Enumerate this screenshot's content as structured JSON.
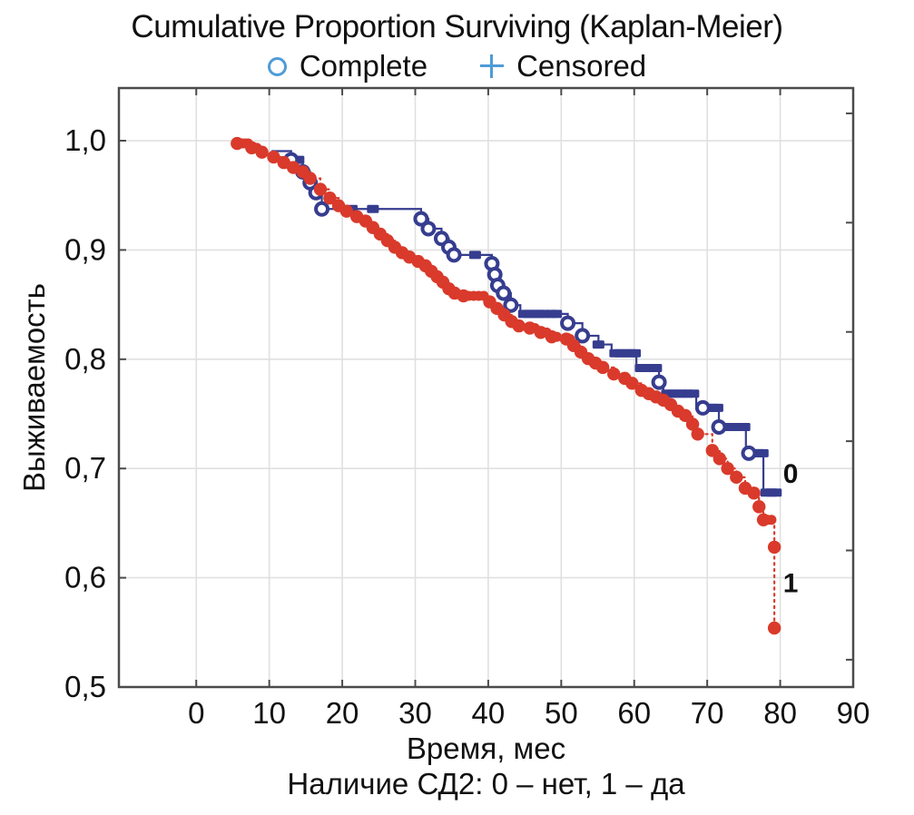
{
  "header": {
    "title": "Cumulative Proportion Surviving (Kaplan-Meier)"
  },
  "chart_data": {
    "type": "line",
    "subtype": "kaplan-meier-step",
    "title": "Cumulative Proportion Surviving (Kaplan-Meier)",
    "xlabel": "Время, мес",
    "ylabel": "Выживаемость",
    "footnote": "Наличие СД2: 0 – нет, 1 – да",
    "grid": true,
    "legend_position": "top",
    "legend": [
      {
        "marker": "open-circle-icon",
        "label": "Complete",
        "color": "#4e9cd8"
      },
      {
        "marker": "plus-icon",
        "label": "Censored",
        "color": "#4e9cd8"
      }
    ],
    "xlim": [
      -10.6,
      90
    ],
    "ylim": [
      0.5,
      1.0482
    ],
    "x_ticks": [
      0,
      10,
      20,
      30,
      40,
      50,
      60,
      70,
      80,
      90
    ],
    "y_ticks": [
      {
        "v": 1.0,
        "label": "1,0"
      },
      {
        "v": 0.9,
        "label": "0,9"
      },
      {
        "v": 0.8,
        "label": "0,8"
      },
      {
        "v": 0.7,
        "label": "0,7"
      },
      {
        "v": 0.6,
        "label": "0,6"
      },
      {
        "v": 0.5,
        "label": "0,5"
      }
    ],
    "y_right_ticks": [
      0.525,
      0.625,
      0.725,
      0.825,
      0.925,
      1.025
    ],
    "colors": {
      "grid": "#e0e0e0",
      "frame": "#4b4b4b",
      "text": "#111111"
    },
    "series": [
      {
        "name": "0",
        "color": "#363d8f",
        "line_style": "solid",
        "complete_marker": "open-circle",
        "censored_marker": "square",
        "end_label": {
          "text": "0",
          "x": 80.4,
          "y": 0.695
        },
        "steps": [
          [
            10.3,
            0.9905
          ],
          [
            13.0,
            0.9825
          ],
          [
            14.6,
            0.9715
          ],
          [
            15.6,
            0.9615
          ],
          [
            16.4,
            0.9525
          ],
          [
            17.2,
            0.9375
          ],
          [
            30.8,
            0.9285
          ],
          [
            31.8,
            0.9195
          ],
          [
            33.6,
            0.9105
          ],
          [
            34.6,
            0.9025
          ],
          [
            35.3,
            0.8955
          ],
          [
            40.5,
            0.8875
          ],
          [
            40.9,
            0.8775
          ],
          [
            41.3,
            0.8675
          ],
          [
            42.1,
            0.8605
          ],
          [
            43.1,
            0.8495
          ],
          [
            44.4,
            0.8415
          ],
          [
            50.9,
            0.833
          ],
          [
            52.9,
            0.8215
          ],
          [
            55.1,
            0.8135
          ],
          [
            56.9,
            0.8055
          ],
          [
            60.3,
            0.792
          ],
          [
            63.4,
            0.779
          ],
          [
            64.0,
            0.7685
          ],
          [
            68.5,
            0.7555
          ],
          [
            71.6,
            0.738
          ],
          [
            75.3,
            0.714
          ],
          [
            77.7,
            0.678
          ],
          [
            79.6,
            0.678
          ]
        ],
        "complete_markers": [
          [
            13.0,
            0.9825
          ],
          [
            14.6,
            0.9715
          ],
          [
            15.6,
            0.9615
          ],
          [
            16.4,
            0.9525
          ],
          [
            17.2,
            0.9375
          ],
          [
            30.8,
            0.9285
          ],
          [
            31.8,
            0.9195
          ],
          [
            33.6,
            0.9105
          ],
          [
            34.6,
            0.9025
          ],
          [
            35.3,
            0.8955
          ],
          [
            40.5,
            0.8875
          ],
          [
            40.9,
            0.8775
          ],
          [
            41.3,
            0.8675
          ],
          [
            42.1,
            0.8605
          ],
          [
            43.1,
            0.8495
          ],
          [
            50.9,
            0.833
          ],
          [
            52.9,
            0.8215
          ],
          [
            63.4,
            0.779
          ],
          [
            69.4,
            0.7555
          ],
          [
            71.6,
            0.738
          ],
          [
            75.7,
            0.714
          ]
        ],
        "censored_markers": [
          [
            14.0,
            0.9825
          ],
          [
            21.3,
            0.9375
          ],
          [
            24.2,
            0.9375
          ],
          [
            38.2,
            0.8955
          ],
          [
            44.9,
            0.8415
          ],
          [
            45.6,
            0.8415
          ],
          [
            46.3,
            0.8415
          ],
          [
            47.0,
            0.8415
          ],
          [
            47.7,
            0.8415
          ],
          [
            48.6,
            0.8415
          ],
          [
            49.3,
            0.8415
          ],
          [
            55.1,
            0.8135
          ],
          [
            57.4,
            0.8055
          ],
          [
            58.1,
            0.8055
          ],
          [
            58.8,
            0.8055
          ],
          [
            59.5,
            0.8055
          ],
          [
            60.1,
            0.8055
          ],
          [
            60.9,
            0.792
          ],
          [
            61.6,
            0.792
          ],
          [
            62.3,
            0.792
          ],
          [
            63.0,
            0.792
          ],
          [
            64.5,
            0.7685
          ],
          [
            65.2,
            0.7685
          ],
          [
            65.9,
            0.7685
          ],
          [
            66.6,
            0.7685
          ],
          [
            67.3,
            0.7685
          ],
          [
            68.1,
            0.7685
          ],
          [
            70.1,
            0.7555
          ],
          [
            70.8,
            0.7555
          ],
          [
            71.4,
            0.7555
          ],
          [
            72.4,
            0.738
          ],
          [
            73.1,
            0.738
          ],
          [
            73.8,
            0.738
          ],
          [
            74.5,
            0.738
          ],
          [
            75.1,
            0.738
          ],
          [
            76.3,
            0.714
          ],
          [
            77.0,
            0.714
          ],
          [
            77.6,
            0.714
          ],
          [
            78.1,
            0.678
          ],
          [
            78.8,
            0.678
          ],
          [
            79.4,
            0.678
          ]
        ]
      },
      {
        "name": "1",
        "color": "#d93a2b",
        "line_style": "dotted",
        "complete_marker": "filled-circle",
        "censored_marker": "dot",
        "end_label": {
          "text": "1",
          "x": 80.4,
          "y": 0.595
        },
        "steps": [
          [
            5.6,
            0.9975
          ],
          [
            7.6,
            0.9935
          ],
          [
            9.0,
            0.9895
          ],
          [
            10.6,
            0.985
          ],
          [
            12.0,
            0.98
          ],
          [
            13.3,
            0.9755
          ],
          [
            14.6,
            0.9715
          ],
          [
            15.6,
            0.9655
          ],
          [
            17.0,
            0.9555
          ],
          [
            18.3,
            0.9475
          ],
          [
            19.5,
            0.9405
          ],
          [
            20.6,
            0.9355
          ],
          [
            22.0,
            0.9305
          ],
          [
            23.2,
            0.9265
          ],
          [
            24.2,
            0.9205
          ],
          [
            25.2,
            0.9145
          ],
          [
            26.2,
            0.9085
          ],
          [
            27.2,
            0.9025
          ],
          [
            28.2,
            0.8975
          ],
          [
            29.2,
            0.8935
          ],
          [
            30.4,
            0.8895
          ],
          [
            31.4,
            0.8855
          ],
          [
            32.2,
            0.8805
          ],
          [
            33.0,
            0.8755
          ],
          [
            33.8,
            0.8705
          ],
          [
            34.6,
            0.8645
          ],
          [
            35.4,
            0.8605
          ],
          [
            36.6,
            0.858
          ],
          [
            40.2,
            0.8525
          ],
          [
            41.2,
            0.8465
          ],
          [
            42.2,
            0.8405
          ],
          [
            43.2,
            0.8345
          ],
          [
            44.2,
            0.8305
          ],
          [
            45.7,
            0.8285
          ],
          [
            47.2,
            0.8245
          ],
          [
            48.7,
            0.8205
          ],
          [
            50.7,
            0.8185
          ],
          [
            51.7,
            0.8125
          ],
          [
            52.7,
            0.8065
          ],
          [
            53.7,
            0.8005
          ],
          [
            54.7,
            0.7965
          ],
          [
            55.7,
            0.7925
          ],
          [
            57.2,
            0.7865
          ],
          [
            58.7,
            0.7825
          ],
          [
            59.7,
            0.778
          ],
          [
            61.0,
            0.7715
          ],
          [
            62.0,
            0.7685
          ],
          [
            63.0,
            0.7655
          ],
          [
            64.0,
            0.7625
          ],
          [
            65.0,
            0.7585
          ],
          [
            66.0,
            0.7525
          ],
          [
            67.0,
            0.7485
          ],
          [
            68.0,
            0.7405
          ],
          [
            68.7,
            0.7315
          ],
          [
            70.7,
            0.7165
          ],
          [
            71.7,
            0.709
          ],
          [
            72.8,
            0.7
          ],
          [
            74.0,
            0.692
          ],
          [
            75.2,
            0.682
          ],
          [
            76.4,
            0.6775
          ],
          [
            77.1,
            0.665
          ],
          [
            77.7,
            0.653
          ],
          [
            79.2,
            0.628
          ],
          [
            79.2,
            0.554
          ]
        ],
        "complete_markers": [
          [
            5.6,
            0.9975
          ],
          [
            7.6,
            0.9935
          ],
          [
            9.0,
            0.9895
          ],
          [
            10.6,
            0.985
          ],
          [
            12.0,
            0.98
          ],
          [
            13.3,
            0.9755
          ],
          [
            14.6,
            0.9715
          ],
          [
            15.6,
            0.9655
          ],
          [
            17.0,
            0.9555
          ],
          [
            18.3,
            0.9475
          ],
          [
            19.5,
            0.9405
          ],
          [
            20.6,
            0.9355
          ],
          [
            22.0,
            0.9305
          ],
          [
            23.2,
            0.9265
          ],
          [
            24.2,
            0.9205
          ],
          [
            25.2,
            0.9145
          ],
          [
            26.2,
            0.9085
          ],
          [
            27.2,
            0.9025
          ],
          [
            28.2,
            0.8975
          ],
          [
            29.2,
            0.8935
          ],
          [
            30.4,
            0.8895
          ],
          [
            31.4,
            0.8855
          ],
          [
            32.2,
            0.8805
          ],
          [
            33.0,
            0.8755
          ],
          [
            33.8,
            0.8705
          ],
          [
            34.6,
            0.8645
          ],
          [
            35.4,
            0.8605
          ],
          [
            36.6,
            0.858
          ],
          [
            40.2,
            0.8525
          ],
          [
            41.2,
            0.8465
          ],
          [
            42.2,
            0.8405
          ],
          [
            43.2,
            0.8345
          ],
          [
            44.2,
            0.8305
          ],
          [
            45.7,
            0.8285
          ],
          [
            47.2,
            0.8245
          ],
          [
            48.7,
            0.8205
          ],
          [
            50.7,
            0.8185
          ],
          [
            51.7,
            0.8125
          ],
          [
            52.7,
            0.8065
          ],
          [
            53.7,
            0.8005
          ],
          [
            54.7,
            0.7965
          ],
          [
            55.7,
            0.7925
          ],
          [
            57.2,
            0.7865
          ],
          [
            58.7,
            0.7825
          ],
          [
            59.7,
            0.778
          ],
          [
            61.0,
            0.7715
          ],
          [
            62.0,
            0.7685
          ],
          [
            63.0,
            0.7655
          ],
          [
            64.0,
            0.7625
          ],
          [
            65.0,
            0.7585
          ],
          [
            66.0,
            0.7525
          ],
          [
            67.0,
            0.7485
          ],
          [
            68.0,
            0.7405
          ],
          [
            68.7,
            0.7315
          ],
          [
            70.7,
            0.7165
          ],
          [
            71.7,
            0.709
          ],
          [
            72.8,
            0.7
          ],
          [
            74.0,
            0.692
          ],
          [
            75.2,
            0.682
          ],
          [
            76.4,
            0.6775
          ],
          [
            77.1,
            0.665
          ],
          [
            77.7,
            0.653
          ],
          [
            79.2,
            0.628
          ],
          [
            79.2,
            0.554
          ]
        ],
        "censored_markers": [
          [
            5.9,
            0.9975
          ],
          [
            6.3,
            0.9975
          ],
          [
            6.7,
            0.9975
          ],
          [
            7.1,
            0.9975
          ],
          [
            8.3,
            0.9935
          ],
          [
            37.3,
            0.858
          ],
          [
            38.0,
            0.858
          ],
          [
            38.7,
            0.858
          ],
          [
            39.4,
            0.858
          ],
          [
            46.4,
            0.8285
          ],
          [
            48.0,
            0.8245
          ],
          [
            49.4,
            0.8205
          ],
          [
            51.2,
            0.8185
          ],
          [
            78.3,
            0.653
          ],
          [
            78.8,
            0.653
          ]
        ]
      }
    ]
  }
}
